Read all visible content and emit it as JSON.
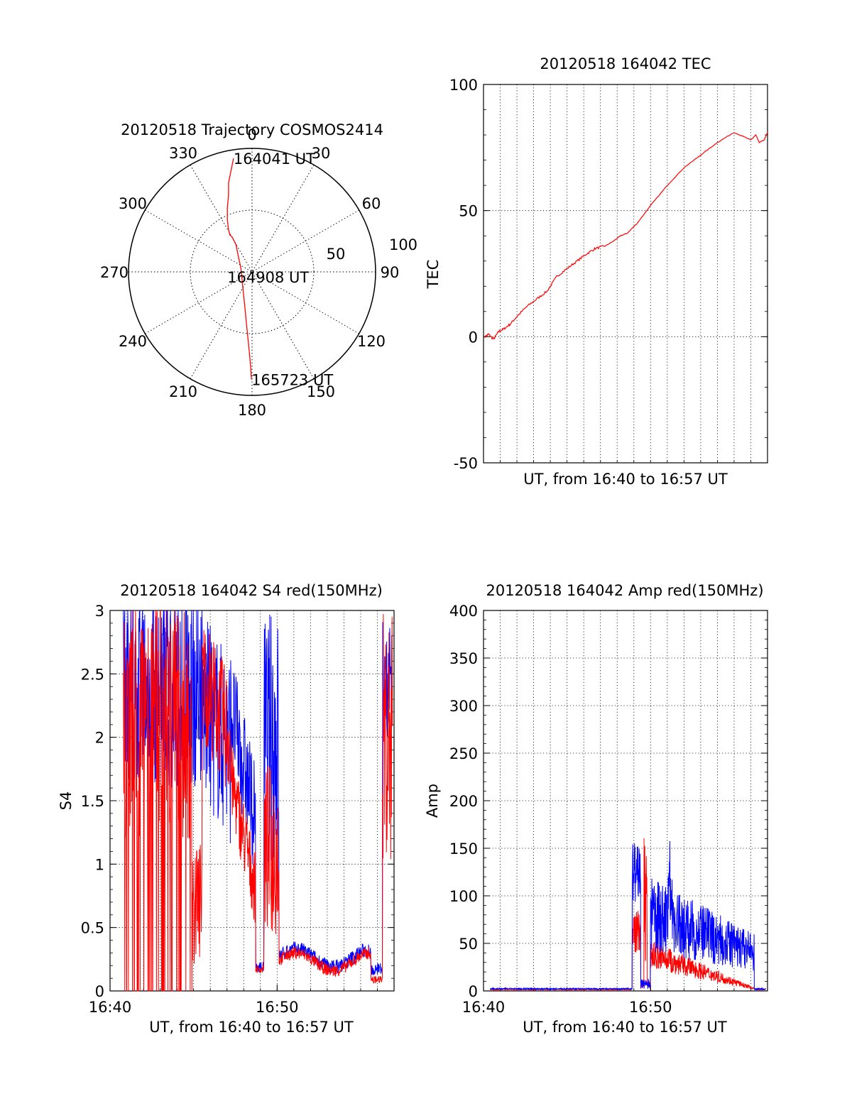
{
  "chart_data": [
    {
      "id": "polar",
      "type": "polar-trajectory",
      "title": "20120518 Trajectory COSMOS2414",
      "r_max": 100,
      "r_labels": [
        "50",
        "100"
      ],
      "angle_labels": [
        "0",
        "30",
        "60",
        "90",
        "120",
        "150",
        "180",
        "210",
        "240",
        "270",
        "300",
        "330"
      ],
      "track": {
        "color": "#ff0000",
        "points": [
          [
            -15,
            92
          ],
          [
            -17,
            82
          ],
          [
            -19,
            72
          ],
          [
            -19,
            62
          ],
          [
            -20,
            52
          ],
          [
            -20,
            42
          ],
          [
            -19,
            34
          ],
          [
            -18,
            30
          ],
          [
            -16,
            28
          ],
          [
            -13,
            22
          ],
          [
            -11,
            12
          ],
          [
            -9,
            3
          ],
          [
            -8,
            -7
          ],
          [
            -7,
            -17
          ],
          [
            -6,
            -27
          ],
          [
            -5,
            -37
          ],
          [
            -4,
            -47
          ],
          [
            -3,
            -57
          ],
          [
            -2,
            -67
          ],
          [
            -1,
            -79
          ],
          [
            -0.5,
            -87
          ]
        ],
        "labels": [
          {
            "text": "164041 UT",
            "at": [
              -15,
              92
            ]
          },
          {
            "text": "164908 UT",
            "at": [
              -20,
              -4
            ]
          },
          {
            "text": "165723 UT",
            "at": [
              -0.5,
              -87
            ]
          }
        ]
      }
    },
    {
      "id": "tec",
      "type": "line",
      "title": "20120518 164042 TEC",
      "xlabel": "UT, from 16:40 to 16:57 UT",
      "ylabel": "TEC",
      "xlim": [
        0,
        17
      ],
      "ylim": [
        -50,
        100
      ],
      "yticks": [
        "100",
        "50",
        "0",
        "-50"
      ],
      "xticks": [],
      "series": [
        {
          "color": "#ff0000",
          "x": [
            0.1,
            0.3,
            0.6,
            0.9,
            1.2,
            1.6,
            2.0,
            2.6,
            3.2,
            3.8,
            4.4,
            5.0,
            5.6,
            6.2,
            6.7,
            7.3,
            7.8,
            8.2,
            8.6,
            9.2,
            10.0,
            11.0,
            12.0,
            13.0,
            14.0,
            15.0,
            16.0,
            16.3,
            16.5,
            16.8,
            17.0
          ],
          "y": [
            0,
            1,
            -1,
            2,
            3,
            5,
            8,
            12,
            15,
            18,
            24,
            27,
            30,
            33,
            35,
            36,
            38,
            40,
            41,
            45,
            52,
            60,
            67,
            72,
            77,
            81,
            78,
            80,
            77,
            78,
            81
          ]
        }
      ]
    },
    {
      "id": "s4",
      "type": "line",
      "title": "20120518 164042 S4 red(150MHz)",
      "xlabel": "UT, from 16:40 to 16:57 UT",
      "ylabel": "S4",
      "xlim": [
        0,
        17
      ],
      "ylim": [
        0,
        3
      ],
      "yticks": [
        "3",
        "2.5",
        "2",
        "1.5",
        "1",
        "0.5",
        "0"
      ],
      "xticks": [
        "16:40",
        "16:50"
      ],
      "series": [
        {
          "name": "red",
          "color": "#ff0000"
        },
        {
          "name": "blue",
          "color": "#0000ff"
        }
      ]
    },
    {
      "id": "amp",
      "type": "line",
      "title": "20120518 164042 Amp red(150MHz)",
      "xlabel": "UT, from 16:40 to 16:57 UT",
      "ylabel": "Amp",
      "xlim": [
        0,
        17
      ],
      "ylim": [
        0,
        400
      ],
      "yticks": [
        "400",
        "350",
        "300",
        "250",
        "200",
        "150",
        "100",
        "50",
        "0"
      ],
      "xticks": [
        "16:40",
        "16:50"
      ],
      "series": [
        {
          "name": "red",
          "color": "#ff0000"
        },
        {
          "name": "blue",
          "color": "#0000ff"
        }
      ]
    }
  ]
}
